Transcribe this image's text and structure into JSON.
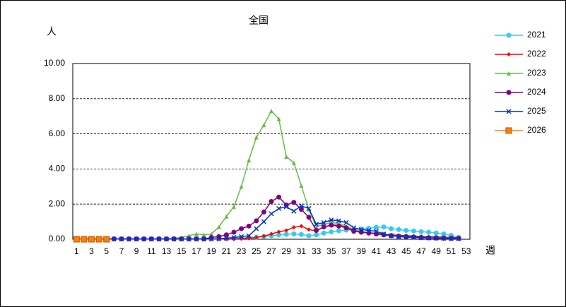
{
  "chart_data": {
    "type": "line",
    "title": "全国",
    "y_label": "人",
    "x_label": "週",
    "categories": [
      "1",
      null,
      "3",
      null,
      "5",
      null,
      "7",
      null,
      "9",
      null,
      "11",
      null,
      "13",
      null,
      "15",
      null,
      "17",
      null,
      "19",
      null,
      "21",
      null,
      "23",
      null,
      "25",
      null,
      "27",
      null,
      "29",
      null,
      "31",
      null,
      "33",
      null,
      "35",
      null,
      "37",
      null,
      "39",
      null,
      "41",
      null,
      "43",
      null,
      "45",
      null,
      "47",
      null,
      "49",
      null,
      "51",
      null,
      "53"
    ],
    "ylim": [
      0,
      10
    ],
    "yticks": [
      {
        "value": 0,
        "label": "0.00"
      },
      {
        "value": 2,
        "label": "2.00"
      },
      {
        "value": 4,
        "label": "4.00"
      },
      {
        "value": 6,
        "label": "6.00"
      },
      {
        "value": 8,
        "label": "8.00"
      },
      {
        "value": 10,
        "label": "10.00"
      }
    ],
    "grid": true,
    "legend": "right",
    "series": [
      {
        "name": "2021",
        "color": "#33ccee",
        "marker": "circle",
        "values": [
          0.02,
          0.02,
          0.02,
          0.02,
          0.02,
          0.02,
          0.02,
          0.02,
          0.02,
          0.02,
          0.02,
          0.02,
          0.02,
          0.02,
          0.02,
          0.02,
          0.02,
          0.02,
          0.02,
          0.03,
          0.04,
          0.05,
          0.07,
          0.09,
          0.12,
          0.15,
          0.2,
          0.25,
          0.28,
          0.3,
          0.27,
          0.2,
          0.25,
          0.35,
          0.42,
          0.48,
          0.52,
          0.55,
          0.58,
          0.62,
          0.68,
          0.7,
          0.6,
          0.55,
          0.5,
          0.47,
          0.43,
          0.4,
          0.35,
          0.3,
          0.22,
          0.1,
          null
        ]
      },
      {
        "name": "2022",
        "color": "#ff0000",
        "marker": "diamond",
        "values": [
          0.01,
          0.01,
          0.01,
          0.01,
          0.01,
          0.01,
          0.01,
          0.01,
          0.01,
          0.01,
          0.01,
          0.01,
          0.01,
          0.01,
          0.01,
          0.01,
          0.01,
          0.01,
          0.01,
          0.01,
          0.01,
          0.01,
          0.03,
          0.05,
          0.1,
          0.18,
          0.3,
          0.42,
          0.5,
          0.68,
          0.75,
          0.55,
          0.48,
          0.7,
          0.82,
          0.8,
          0.7,
          0.5,
          0.42,
          0.38,
          0.33,
          0.28,
          0.25,
          0.22,
          0.2,
          0.18,
          0.16,
          0.14,
          0.13,
          0.12,
          0.1,
          0.08,
          null
        ]
      },
      {
        "name": "2023",
        "color": "#66bb44",
        "marker": "triangle",
        "values": [
          0.01,
          0.01,
          0.01,
          0.01,
          0.01,
          0.01,
          0.01,
          0.01,
          0.01,
          0.01,
          0.01,
          0.01,
          0.03,
          0.05,
          0.1,
          0.2,
          0.3,
          0.25,
          0.3,
          0.7,
          1.3,
          1.85,
          3.0,
          4.5,
          5.8,
          6.5,
          7.3,
          6.85,
          4.7,
          4.35,
          3.05,
          1.7,
          0.7,
          0.85,
          0.95,
          0.9,
          0.75,
          0.55,
          0.45,
          0.38,
          0.3,
          0.25,
          0.2,
          0.17,
          0.15,
          0.12,
          0.1,
          0.09,
          0.08,
          0.07,
          0.06,
          0.05,
          null
        ]
      },
      {
        "name": "2024",
        "color": "#800080",
        "marker": "circle",
        "values": [
          0.02,
          0.02,
          0.02,
          0.02,
          0.02,
          0.02,
          0.02,
          0.02,
          0.02,
          0.02,
          0.02,
          0.02,
          0.02,
          0.02,
          0.02,
          0.02,
          0.02,
          0.02,
          0.1,
          0.15,
          0.25,
          0.4,
          0.6,
          0.75,
          1.05,
          1.55,
          2.15,
          2.4,
          1.95,
          2.1,
          1.7,
          1.25,
          0.5,
          0.7,
          0.8,
          0.75,
          0.65,
          0.45,
          0.4,
          0.35,
          0.3,
          0.25,
          0.2,
          0.17,
          0.15,
          0.12,
          0.1,
          0.08,
          0.07,
          0.06,
          0.05,
          0.05,
          null
        ]
      },
      {
        "name": "2025",
        "color": "#0033cc",
        "marker": "cross",
        "values": [
          0.01,
          0.01,
          0.01,
          0.01,
          0.01,
          0.01,
          0.01,
          0.01,
          0.01,
          0.01,
          0.01,
          0.01,
          0.01,
          0.01,
          0.01,
          0.01,
          0.01,
          0.01,
          0.01,
          0.03,
          0.06,
          0.1,
          0.15,
          0.2,
          0.6,
          1.0,
          1.45,
          1.75,
          1.85,
          1.6,
          1.9,
          1.75,
          0.85,
          0.95,
          1.1,
          1.05,
          0.95,
          0.65,
          0.55,
          0.5,
          0.45,
          0.3,
          0.2,
          0.15,
          0.12,
          0.1,
          0.08,
          0.07,
          0.06,
          0.05,
          0.04,
          0.03,
          null
        ]
      },
      {
        "name": "2026",
        "color": "#ff8000",
        "marker": "square",
        "values": [
          0,
          0,
          0,
          0,
          0,
          null,
          null,
          null,
          null,
          null,
          null,
          null,
          null,
          null,
          null,
          null,
          null,
          null,
          null,
          null,
          null,
          null,
          null,
          null,
          null,
          null,
          null,
          null,
          null,
          null,
          null,
          null,
          null,
          null,
          null,
          null,
          null,
          null,
          null,
          null,
          null,
          null,
          null,
          null,
          null,
          null,
          null,
          null,
          null,
          null,
          null,
          null,
          null
        ]
      }
    ]
  }
}
